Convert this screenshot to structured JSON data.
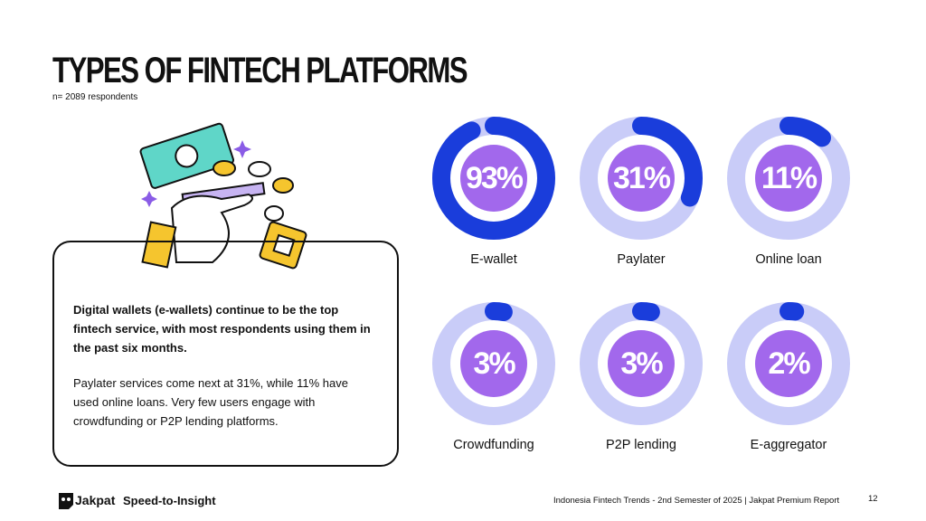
{
  "chart_data": {
    "type": "donut",
    "title": "TYPES OF FINTECH PLATFORMS",
    "subtitle": "n= 2089 respondents",
    "categories": [
      "E-wallet",
      "Paylater",
      "Online loan",
      "Crowdfunding",
      "P2P lending",
      "E-aggregator"
    ],
    "values": [
      93,
      31,
      11,
      3,
      3,
      2
    ],
    "value_labels": [
      "93%",
      "31%",
      "11%",
      "3%",
      "3%",
      "2%"
    ],
    "ylim": [
      0,
      100
    ],
    "color": "#1a3ddb",
    "track_color": "#c9ccf8",
    "center_color": "#a268ec"
  },
  "text": {
    "highlight": "Digital wallets (e-wallets) continue to be the top fintech service, with most respondents using them in the past six months.",
    "body": "Paylater services come next at 31%, while 11% have used online loans. Very few users engage with crowdfunding or P2P lending platforms."
  },
  "footer": {
    "brand": "Jakpat",
    "tagline": "Speed-to-Insight",
    "source": "Indonesia Fintech Trends - 2nd Semester of 2025 | Jakpat Premium Report",
    "page": "12"
  }
}
